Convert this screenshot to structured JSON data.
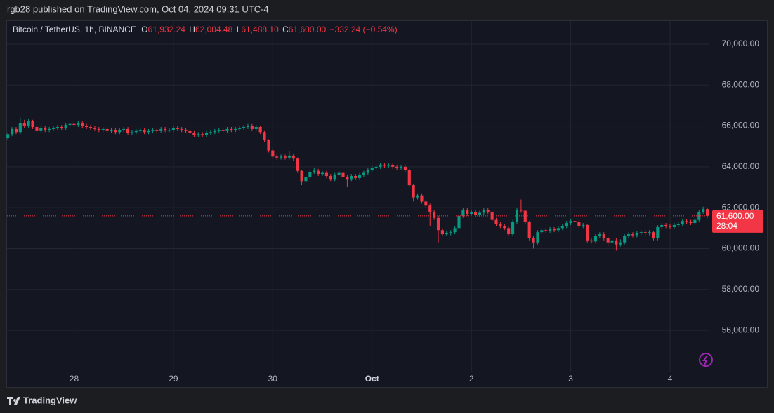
{
  "header": {
    "published": "rgb28 published on TradingView.com, Oct 04, 2024 09:31 UTC-4",
    "brand": "TradingView"
  },
  "chart_data": {
    "type": "candlestick",
    "title": "Bitcoin / TetherUS, 1h, BINANCE",
    "legend": [
      {
        "key": "O",
        "value": "61,932.24"
      },
      {
        "key": "H",
        "value": "62,004.48"
      },
      {
        "key": "L",
        "value": "61,488.10"
      },
      {
        "key": "C",
        "value": "61,600.00"
      }
    ],
    "change": "−332.24 (−0.54%)",
    "up_color": "#089981",
    "down_color": "#f23645",
    "grid": true,
    "xlim": [
      -0.2,
      169.5
    ],
    "xticks": [
      {
        "value": 16,
        "label": "28"
      },
      {
        "value": 40,
        "label": "29"
      },
      {
        "value": 64,
        "label": "30"
      },
      {
        "value": 88,
        "label": "Oct"
      },
      {
        "value": 112,
        "label": "2"
      },
      {
        "value": 136,
        "label": "3"
      },
      {
        "value": 160,
        "label": "4"
      }
    ],
    "ylim": [
      53980,
      71130
    ],
    "yticks": [
      {
        "value": 56000,
        "label": "56,000.00"
      },
      {
        "value": 58000,
        "label": "58,000.00"
      },
      {
        "value": 60000,
        "label": "60,000.00"
      },
      {
        "value": 62000,
        "label": "62,000.00"
      },
      {
        "value": 64000,
        "label": "64,000.00"
      },
      {
        "value": 66000,
        "label": "66,000.00"
      },
      {
        "value": 68000,
        "label": "68,000.00"
      },
      {
        "value": 70000,
        "label": "70,000.00"
      }
    ],
    "last_price": {
      "value": 61600,
      "label": "61,600.00"
    },
    "countdown": "28:04",
    "open": [
      65400,
      65600,
      65850,
      65700,
      66150,
      66000,
      66250,
      65950,
      65750,
      65900,
      65800,
      65850,
      65900,
      65950,
      65900,
      66050,
      66100,
      66050,
      66150,
      66000,
      65950,
      65900,
      65850,
      65800,
      65850,
      65750,
      65800,
      65700,
      65800,
      65850,
      65650,
      65700,
      65750,
      65800,
      65700,
      65750,
      65800,
      65750,
      65850,
      65800,
      65800,
      65900,
      65850,
      65800,
      65750,
      65650,
      65550,
      65600,
      65550,
      65650,
      65700,
      65750,
      65800,
      65750,
      65850,
      65800,
      65850,
      65900,
      65950,
      66000,
      65850,
      65950,
      65700,
      65300,
      64800,
      64500,
      64450,
      64500,
      64450,
      64550,
      64400,
      63800,
      63300,
      63500,
      63750,
      63800,
      63650,
      63700,
      63550,
      63400,
      63600,
      63700,
      63500,
      63400,
      63550,
      63450,
      63600,
      63700,
      63850,
      63950,
      64000,
      64100,
      64050,
      64100,
      64000,
      63950,
      64000,
      63850,
      63100,
      62500,
      62600,
      62300,
      62100,
      61800,
      61500,
      60900,
      60700,
      60750,
      60800,
      61000,
      61600,
      61900,
      61700,
      61800,
      61650,
      61750,
      61900,
      61800,
      61400,
      61200,
      61100,
      61000,
      60700,
      61300,
      61900,
      61850,
      61300,
      60500,
      60300,
      60800,
      60900,
      60850,
      60950,
      60900,
      61000,
      61100,
      61250,
      61350,
      61300,
      61100,
      61150,
      60400,
      60350,
      60600,
      60700,
      60500,
      60300,
      60400,
      60200,
      60300,
      60600,
      60700,
      60650,
      60750,
      60800,
      60750,
      60800,
      60500,
      61050,
      61150,
      61100,
      61050,
      61150,
      61200,
      61350,
      61300,
      61250,
      61400,
      61800,
      61932.24
    ],
    "high": [
      65700,
      65950,
      65950,
      66400,
      66300,
      66350,
      66300,
      66050,
      66000,
      66000,
      65950,
      66000,
      66050,
      66050,
      66150,
      66200,
      66200,
      66250,
      66250,
      66100,
      66050,
      66000,
      65950,
      65950,
      65950,
      65900,
      65900,
      65900,
      65950,
      65950,
      65800,
      65850,
      65900,
      65900,
      65850,
      65900,
      65900,
      65950,
      65950,
      65900,
      66000,
      66000,
      65950,
      65900,
      65850,
      65750,
      65700,
      65700,
      65750,
      65800,
      65850,
      65900,
      65900,
      65950,
      65950,
      65950,
      66000,
      66050,
      66100,
      66100,
      66050,
      66000,
      65750,
      65350,
      64900,
      64600,
      64600,
      64600,
      64750,
      64650,
      64450,
      63850,
      63600,
      63850,
      63950,
      63900,
      63800,
      63800,
      63650,
      63700,
      63800,
      63800,
      63600,
      63650,
      63650,
      63700,
      63800,
      63950,
      64050,
      64100,
      64200,
      64200,
      64200,
      64200,
      64100,
      64100,
      64100,
      63900,
      63150,
      62700,
      62700,
      62400,
      62200,
      61900,
      61600,
      61000,
      60850,
      60900,
      61100,
      61700,
      62000,
      62000,
      61900,
      61900,
      61850,
      62000,
      62000,
      61850,
      61500,
      61300,
      61200,
      61100,
      61400,
      62000,
      62400,
      61900,
      61350,
      60600,
      60900,
      61000,
      61000,
      61050,
      61050,
      61100,
      61200,
      61350,
      61450,
      61450,
      61400,
      61250,
      61200,
      60500,
      60700,
      60800,
      60800,
      60600,
      60500,
      60500,
      60450,
      60700,
      60800,
      60800,
      60850,
      60900,
      60900,
      60900,
      60850,
      61150,
      61250,
      61250,
      61200,
      61250,
      61300,
      61450,
      61450,
      61400,
      61500,
      61900,
      62050,
      62004.48
    ],
    "low": [
      65300,
      65500,
      65600,
      65600,
      65900,
      65900,
      65850,
      65650,
      65650,
      65700,
      65700,
      65750,
      65800,
      65800,
      65800,
      65950,
      65950,
      65950,
      65900,
      65850,
      65800,
      65750,
      65700,
      65700,
      65650,
      65650,
      65600,
      65600,
      65700,
      65550,
      65550,
      65600,
      65650,
      65600,
      65600,
      65650,
      65650,
      65650,
      65700,
      65700,
      65700,
      65750,
      65700,
      65650,
      65550,
      65450,
      65450,
      65450,
      65450,
      65550,
      65600,
      65650,
      65650,
      65650,
      65700,
      65700,
      65750,
      65800,
      65850,
      65750,
      65750,
      65600,
      65200,
      64700,
      64400,
      64350,
      64350,
      64350,
      64350,
      64300,
      63700,
      63100,
      63200,
      63400,
      63650,
      63550,
      63550,
      63450,
      63300,
      63300,
      63500,
      63400,
      63000,
      63300,
      63350,
      63350,
      63500,
      63600,
      63750,
      63850,
      63900,
      63950,
      63950,
      63900,
      63850,
      63850,
      63750,
      63000,
      62300,
      62400,
      62200,
      62000,
      61100,
      61400,
      60300,
      60600,
      60600,
      60650,
      60700,
      60900,
      61500,
      61600,
      61600,
      61550,
      61550,
      61650,
      61700,
      61300,
      61100,
      61000,
      60900,
      60600,
      60600,
      61200,
      61750,
      61200,
      60400,
      60000,
      60200,
      60700,
      60750,
      60750,
      60800,
      60800,
      60900,
      61000,
      61150,
      61200,
      61000,
      61000,
      60300,
      60250,
      60250,
      60500,
      60400,
      60100,
      60200,
      59900,
      60100,
      60200,
      60500,
      60550,
      60550,
      60650,
      60650,
      60650,
      60400,
      60400,
      60950,
      61000,
      60950,
      60950,
      61050,
      61100,
      61200,
      61150,
      61150,
      61300,
      61700,
      61488.1
    ],
    "close": [
      65600,
      65850,
      65700,
      66150,
      66000,
      66250,
      65950,
      65750,
      65900,
      65800,
      65850,
      65900,
      65950,
      65900,
      66050,
      66100,
      66050,
      66150,
      66000,
      65950,
      65900,
      65850,
      65800,
      65850,
      65750,
      65800,
      65700,
      65800,
      65850,
      65650,
      65700,
      65750,
      65800,
      65700,
      65750,
      65800,
      65750,
      65850,
      65800,
      65800,
      65900,
      65850,
      65800,
      65750,
      65650,
      65550,
      65600,
      65550,
      65650,
      65700,
      65750,
      65800,
      65750,
      65850,
      65800,
      65850,
      65900,
      65950,
      66000,
      65850,
      65950,
      65700,
      65300,
      64800,
      64500,
      64450,
      64500,
      64450,
      64550,
      64400,
      63800,
      63300,
      63500,
      63750,
      63800,
      63650,
      63700,
      63550,
      63400,
      63600,
      63700,
      63500,
      63400,
      63550,
      63450,
      63600,
      63700,
      63850,
      63950,
      64000,
      64100,
      64050,
      64100,
      64000,
      63950,
      64000,
      63850,
      63100,
      62500,
      62600,
      62300,
      62100,
      61800,
      61500,
      60900,
      60700,
      60750,
      60800,
      61000,
      61600,
      61900,
      61700,
      61800,
      61650,
      61750,
      61900,
      61800,
      61400,
      61200,
      61100,
      61000,
      60700,
      61300,
      61900,
      61850,
      61300,
      60500,
      60300,
      60800,
      60900,
      60850,
      60950,
      60900,
      61000,
      61100,
      61250,
      61350,
      61300,
      61100,
      61150,
      60400,
      60350,
      60600,
      60700,
      60500,
      60300,
      60400,
      60200,
      60300,
      60600,
      60700,
      60650,
      60750,
      60800,
      60750,
      60800,
      60500,
      61050,
      61150,
      61100,
      61050,
      61150,
      61200,
      61350,
      61300,
      61250,
      61400,
      61800,
      61932.24,
      61600
    ]
  }
}
